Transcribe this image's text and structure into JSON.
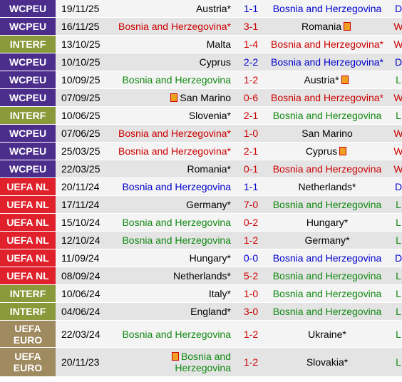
{
  "colors": {
    "WCPEU": "#4b2e8c",
    "INTERF": "#8a9a3a",
    "UEFA NL": "#e0202a",
    "UEFA EURO": "#a08a60"
  },
  "matches": [
    {
      "comp": "WCPEU",
      "date": "19/11/25",
      "home": "Austria",
      "home_star": "*",
      "home_color": "c-black",
      "score": "1-1",
      "score_color": "c-blue",
      "away": "Bosnia and Herzegovina",
      "away_star": "",
      "away_color": "c-blue",
      "result": "D",
      "result_color": "c-blue",
      "flag": ""
    },
    {
      "comp": "WCPEU",
      "date": "16/11/25",
      "home": "Bosnia and Herzegovina",
      "home_star": "*",
      "home_color": "c-red",
      "score": "3-1",
      "score_color": "c-red",
      "away": "Romania",
      "away_star": "",
      "away_color": "c-black",
      "result": "W",
      "result_color": "c-red",
      "flag": "away"
    },
    {
      "comp": "INTERF",
      "date": "13/10/25",
      "home": "Malta",
      "home_star": "",
      "home_color": "c-black",
      "score": "1-4",
      "score_color": "c-red",
      "away": "Bosnia and Herzegovina",
      "away_star": "*",
      "away_color": "c-red",
      "result": "W",
      "result_color": "c-red",
      "flag": ""
    },
    {
      "comp": "WCPEU",
      "date": "10/10/25",
      "home": "Cyprus",
      "home_star": "",
      "home_color": "c-black",
      "score": "2-2",
      "score_color": "c-blue",
      "away": "Bosnia and Herzegovina",
      "away_star": "*",
      "away_color": "c-blue",
      "result": "D",
      "result_color": "c-blue",
      "flag": ""
    },
    {
      "comp": "WCPEU",
      "date": "10/09/25",
      "home": "Bosnia and Herzegovina",
      "home_star": "",
      "home_color": "c-green",
      "score": "1-2",
      "score_color": "c-red",
      "away": "Austria",
      "away_star": "*",
      "away_color": "c-black",
      "result": "L",
      "result_color": "c-green",
      "flag": "away"
    },
    {
      "comp": "WCPEU",
      "date": "07/09/25",
      "home": "San Marino",
      "home_star": "",
      "home_color": "c-black",
      "score": "0-6",
      "score_color": "c-red",
      "away": "Bosnia and Herzegovina",
      "away_star": "*",
      "away_color": "c-red",
      "result": "W",
      "result_color": "c-red",
      "flag": "home"
    },
    {
      "comp": "INTERF",
      "date": "10/06/25",
      "home": "Slovenia",
      "home_star": "*",
      "home_color": "c-black",
      "score": "2-1",
      "score_color": "c-red",
      "away": "Bosnia and Herzegovina",
      "away_star": "",
      "away_color": "c-green",
      "result": "L",
      "result_color": "c-green",
      "flag": ""
    },
    {
      "comp": "WCPEU",
      "date": "07/06/25",
      "home": "Bosnia and Herzegovina",
      "home_star": "*",
      "home_color": "c-red",
      "score": "1-0",
      "score_color": "c-red",
      "away": "San Marino",
      "away_star": "",
      "away_color": "c-black",
      "result": "W",
      "result_color": "c-red",
      "flag": ""
    },
    {
      "comp": "WCPEU",
      "date": "25/03/25",
      "home": "Bosnia and Herzegovina",
      "home_star": "*",
      "home_color": "c-red",
      "score": "2-1",
      "score_color": "c-red",
      "away": "Cyprus",
      "away_star": "",
      "away_color": "c-black",
      "result": "W",
      "result_color": "c-red",
      "flag": "away"
    },
    {
      "comp": "WCPEU",
      "date": "22/03/25",
      "home": "Romania",
      "home_star": "*",
      "home_color": "c-black",
      "score": "0-1",
      "score_color": "c-red",
      "away": "Bosnia and Herzegovina",
      "away_star": "",
      "away_color": "c-red",
      "result": "W",
      "result_color": "c-red",
      "flag": ""
    },
    {
      "comp": "UEFA NL",
      "date": "20/11/24",
      "home": "Bosnia and Herzegovina",
      "home_star": "",
      "home_color": "c-blue",
      "score": "1-1",
      "score_color": "c-blue",
      "away": "Netherlands",
      "away_star": "*",
      "away_color": "c-black",
      "result": "D",
      "result_color": "c-blue",
      "flag": ""
    },
    {
      "comp": "UEFA NL",
      "date": "17/11/24",
      "home": "Germany",
      "home_star": "*",
      "home_color": "c-black",
      "score": "7-0",
      "score_color": "c-red",
      "away": "Bosnia and Herzegovina",
      "away_star": "",
      "away_color": "c-green",
      "result": "L",
      "result_color": "c-green",
      "flag": ""
    },
    {
      "comp": "UEFA NL",
      "date": "15/10/24",
      "home": "Bosnia and Herzegovina",
      "home_star": "",
      "home_color": "c-green",
      "score": "0-2",
      "score_color": "c-red",
      "away": "Hungary",
      "away_star": "*",
      "away_color": "c-black",
      "result": "L",
      "result_color": "c-green",
      "flag": ""
    },
    {
      "comp": "UEFA NL",
      "date": "12/10/24",
      "home": "Bosnia and Herzegovina",
      "home_star": "",
      "home_color": "c-green",
      "score": "1-2",
      "score_color": "c-red",
      "away": "Germany",
      "away_star": "*",
      "away_color": "c-black",
      "result": "L",
      "result_color": "c-green",
      "flag": ""
    },
    {
      "comp": "UEFA NL",
      "date": "11/09/24",
      "home": "Hungary",
      "home_star": "*",
      "home_color": "c-black",
      "score": "0-0",
      "score_color": "c-blue",
      "away": "Bosnia and Herzegovina",
      "away_star": "",
      "away_color": "c-blue",
      "result": "D",
      "result_color": "c-blue",
      "flag": ""
    },
    {
      "comp": "UEFA NL",
      "date": "08/09/24",
      "home": "Netherlands",
      "home_star": "*",
      "home_color": "c-black",
      "score": "5-2",
      "score_color": "c-red",
      "away": "Bosnia and Herzegovina",
      "away_star": "",
      "away_color": "c-green",
      "result": "L",
      "result_color": "c-green",
      "flag": ""
    },
    {
      "comp": "INTERF",
      "date": "10/06/24",
      "home": "Italy",
      "home_star": "*",
      "home_color": "c-black",
      "score": "1-0",
      "score_color": "c-red",
      "away": "Bosnia and Herzegovina",
      "away_star": "",
      "away_color": "c-green",
      "result": "L",
      "result_color": "c-green",
      "flag": ""
    },
    {
      "comp": "INTERF",
      "date": "04/06/24",
      "home": "England",
      "home_star": "*",
      "home_color": "c-black",
      "score": "3-0",
      "score_color": "c-red",
      "away": "Bosnia and Herzegovina",
      "away_star": "",
      "away_color": "c-green",
      "result": "L",
      "result_color": "c-green",
      "flag": ""
    },
    {
      "comp": "UEFA EURO",
      "date": "22/03/24",
      "home": "Bosnia and Herzegovina",
      "home_star": "",
      "home_color": "c-green",
      "score": "1-2",
      "score_color": "c-red",
      "away": "Ukraine",
      "away_star": "*",
      "away_color": "c-black",
      "result": "L",
      "result_color": "c-green",
      "flag": ""
    },
    {
      "comp": "UEFA EURO",
      "date": "20/11/23",
      "home": "Bosnia and Herzegovina",
      "home_star": "",
      "home_color": "c-green",
      "score": "1-2",
      "score_color": "c-red",
      "away": "Slovakia",
      "away_star": "*",
      "away_color": "c-black",
      "result": "L",
      "result_color": "c-green",
      "flag": "home"
    }
  ]
}
